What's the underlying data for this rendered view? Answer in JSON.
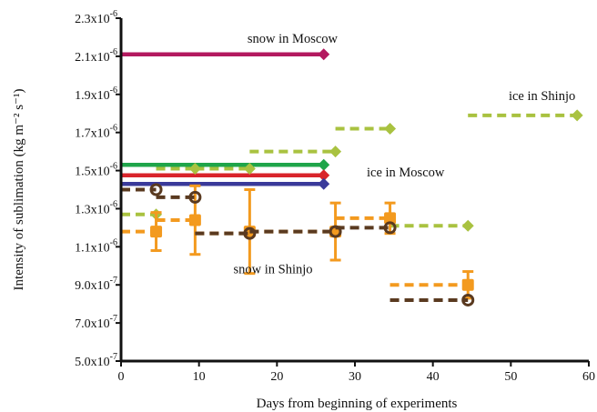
{
  "chart_data": {
    "type": "line",
    "title": "",
    "xlabel": "Days from beginning of experiments",
    "ylabel": "Intensity of sublimation (kg m⁻² s⁻¹)",
    "xlim": [
      0,
      60
    ],
    "ylim": [
      5e-07,
      2.3e-06
    ],
    "x_ticks": [
      {
        "value": 0,
        "label": "0"
      },
      {
        "value": 10,
        "label": "10"
      },
      {
        "value": 20,
        "label": "20"
      },
      {
        "value": 30,
        "label": "30"
      },
      {
        "value": 40,
        "label": "40"
      },
      {
        "value": 50,
        "label": "50"
      },
      {
        "value": 60,
        "label": "60"
      }
    ],
    "y_ticks": [
      {
        "value": 5e-07,
        "mant": "5.0x10",
        "exp": "-7"
      },
      {
        "value": 7e-07,
        "mant": "7.0x10",
        "exp": "-7"
      },
      {
        "value": 9e-07,
        "mant": "9.0x10",
        "exp": "-7"
      },
      {
        "value": 1.1e-06,
        "mant": "1.1x10",
        "exp": "-6"
      },
      {
        "value": 1.3e-06,
        "mant": "1.3x10",
        "exp": "-6"
      },
      {
        "value": 1.5e-06,
        "mant": "1.5x10",
        "exp": "-6"
      },
      {
        "value": 1.7e-06,
        "mant": "1.7x10",
        "exp": "-6"
      },
      {
        "value": 1.9e-06,
        "mant": "1.9x10",
        "exp": "-6"
      },
      {
        "value": 2.1e-06,
        "mant": "2.1x10",
        "exp": "-6"
      },
      {
        "value": 2.3e-06,
        "mant": "2.3x10",
        "exp": "-6"
      }
    ],
    "grid": false,
    "annotations": [
      {
        "text": "snow in Moscow",
        "x": 22,
        "y": 2.17e-06
      },
      {
        "text": "ice in Moscow",
        "x": 36.5,
        "y": 1.47e-06
      },
      {
        "text": "ice in Shinjo",
        "x": 54,
        "y": 1.87e-06
      },
      {
        "text": "snow in Shinjo",
        "x": 19.5,
        "y": 9.6e-07
      }
    ],
    "series": [
      {
        "color": "#b3195f",
        "dash": false,
        "marker": "diamond",
        "steps": [
          {
            "x0": 0,
            "x1": 26,
            "y": 2.11e-06
          }
        ]
      },
      {
        "color": "#1fa54a",
        "dash": false,
        "marker": "diamond",
        "steps": [
          {
            "x0": 0,
            "x1": 26,
            "y": 1.53e-06
          }
        ]
      },
      {
        "color": "#d9242b",
        "dash": false,
        "marker": "diamond",
        "steps": [
          {
            "x0": 0,
            "x1": 26,
            "y": 1.475e-06
          }
        ]
      },
      {
        "color": "#3a3a9a",
        "dash": false,
        "marker": "diamond",
        "steps": [
          {
            "x0": 0,
            "x1": 26,
            "y": 1.43e-06
          }
        ]
      },
      {
        "color": "#a9c240",
        "dash": true,
        "marker": "diamond",
        "steps": [
          {
            "x0": 0,
            "x1": 4.5,
            "y": 1.27e-06
          },
          {
            "x0": 4.5,
            "x1": 9.5,
            "y": 1.51e-06
          },
          {
            "x0": 9.5,
            "x1": 16.5,
            "y": 1.51e-06
          },
          {
            "x0": 16.5,
            "x1": 27.5,
            "y": 1.6e-06
          },
          {
            "x0": 27.5,
            "x1": 34.5,
            "y": 1.72e-06
          },
          {
            "x0": 34.5,
            "x1": 44.5,
            "y": 1.21e-06
          },
          {
            "x0": 44.5,
            "x1": 58.5,
            "y": 1.79e-06
          }
        ]
      },
      {
        "color": "#f39a1f",
        "dash": true,
        "marker": "square",
        "steps": [
          {
            "x0": 0,
            "x1": 4.5,
            "y": 1.18e-06,
            "err": 1e-07
          },
          {
            "x0": 4.5,
            "x1": 9.5,
            "y": 1.24e-06,
            "err": 1.8e-07
          },
          {
            "x0": 9.5,
            "x1": 16.5,
            "y": 1.17e-06,
            "err": 0
          },
          {
            "x0": 16.5,
            "x1": 27.5,
            "y": 1.18e-06,
            "err": 2.2e-07
          },
          {
            "x0": 27.5,
            "x1": 34.5,
            "y": 1.25e-06,
            "err": 0
          },
          {
            "x0": 34.5,
            "x1": 44.5,
            "y": 9e-07,
            "err": 0
          },
          {
            "x0": 44.5,
            "x1": 44.5,
            "y": 9e-07,
            "err": 7e-08
          }
        ],
        "bars": [
          {
            "x": 4.5,
            "y": 1.18e-06,
            "err": 1e-07
          },
          {
            "x": 9.5,
            "y": 1.24e-06,
            "err": 1.8e-07
          },
          {
            "x": 16.5,
            "y": 1.18e-06,
            "err": 2.2e-07
          },
          {
            "x": 27.5,
            "y": 1.18e-06,
            "err": 1.5e-07
          },
          {
            "x": 34.5,
            "y": 1.25e-06,
            "err": 8e-08
          },
          {
            "x": 44.5,
            "y": 9e-07,
            "err": 7e-08
          }
        ]
      },
      {
        "color": "#5a3a20",
        "dash": true,
        "marker": "circle",
        "steps": [
          {
            "x0": 0,
            "x1": 4.5,
            "y": 1.4e-06
          },
          {
            "x0": 4.5,
            "x1": 9.5,
            "y": 1.36e-06
          },
          {
            "x0": 9.5,
            "x1": 16.5,
            "y": 1.17e-06
          },
          {
            "x0": 16.5,
            "x1": 27.5,
            "y": 1.18e-06
          },
          {
            "x0": 27.5,
            "x1": 34.5,
            "y": 1.2e-06
          },
          {
            "x0": 34.5,
            "x1": 44.5,
            "y": 8.2e-07
          }
        ]
      }
    ]
  }
}
